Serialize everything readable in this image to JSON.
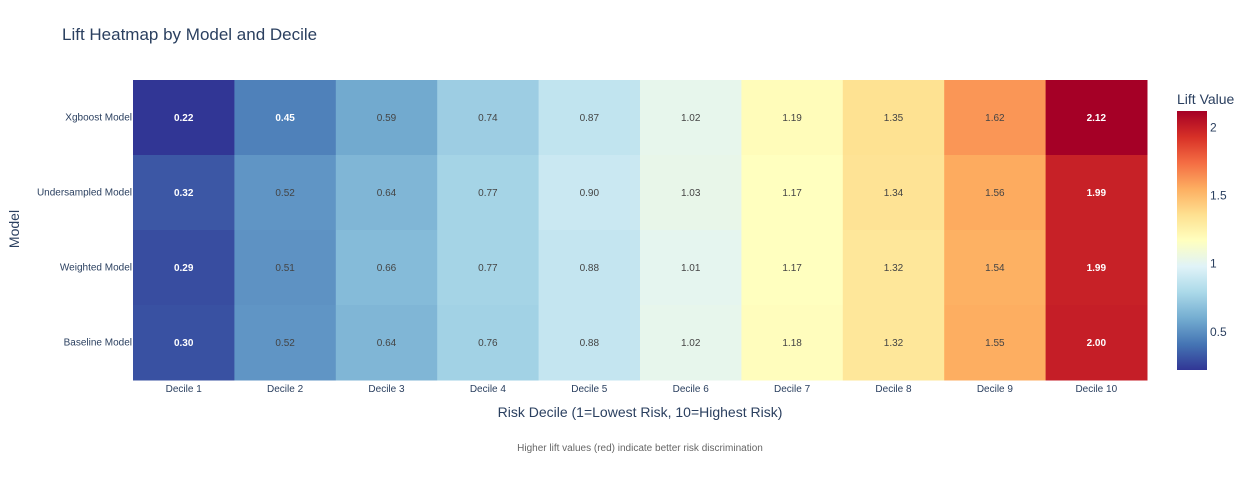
{
  "chart_data": {
    "type": "heatmap",
    "title": "Lift Heatmap by Model and Decile",
    "xlabel": "Risk Decile (1=Lowest Risk, 10=Highest Risk)",
    "ylabel": "Model",
    "x_categories": [
      "Decile 1",
      "Decile 2",
      "Decile 3",
      "Decile 4",
      "Decile 5",
      "Decile 6",
      "Decile 7",
      "Decile 8",
      "Decile 9",
      "Decile 10"
    ],
    "y_categories": [
      "Xgboost Model",
      "Undersampled Model",
      "Weighted Model",
      "Baseline Model"
    ],
    "values": [
      [
        0.22,
        0.45,
        0.59,
        0.74,
        0.87,
        1.02,
        1.19,
        1.35,
        1.62,
        2.12
      ],
      [
        0.32,
        0.52,
        0.64,
        0.77,
        0.9,
        1.03,
        1.17,
        1.34,
        1.56,
        1.99
      ],
      [
        0.29,
        0.51,
        0.66,
        0.77,
        0.88,
        1.01,
        1.17,
        1.32,
        1.54,
        1.99
      ],
      [
        0.3,
        0.52,
        0.64,
        0.76,
        0.88,
        1.02,
        1.18,
        1.32,
        1.55,
        2.0
      ]
    ],
    "labels": [
      [
        "0.22",
        "0.45",
        "0.59",
        "0.74",
        "0.87",
        "1.02",
        "1.19",
        "1.35",
        "1.62",
        "2.12"
      ],
      [
        "0.32",
        "0.52",
        "0.64",
        "0.77",
        "0.90",
        "1.03",
        "1.17",
        "1.34",
        "1.56",
        "1.99"
      ],
      [
        "0.29",
        "0.51",
        "0.66",
        "0.77",
        "0.88",
        "1.01",
        "1.17",
        "1.32",
        "1.54",
        "1.99"
      ],
      [
        "0.30",
        "0.52",
        "0.64",
        "0.76",
        "0.88",
        "1.02",
        "1.18",
        "1.32",
        "1.55",
        "2.00"
      ]
    ],
    "colorscale": {
      "name": "RdYlBu reversed",
      "min": 0.22,
      "max": 2.12,
      "stops": [
        "#313695",
        "#4575b4",
        "#74add1",
        "#abd9e9",
        "#e0f3f8",
        "#ffffbf",
        "#fee090",
        "#fdae61",
        "#f46d43",
        "#d73027",
        "#a50026"
      ]
    },
    "colorbar": {
      "title": "Lift Value",
      "ticks": [
        0.5,
        1,
        1.5,
        2
      ],
      "tick_labels": [
        "0.5",
        "1",
        "1.5",
        "2"
      ]
    },
    "annotation": "Higher lift values (red) indicate better risk discrimination"
  }
}
